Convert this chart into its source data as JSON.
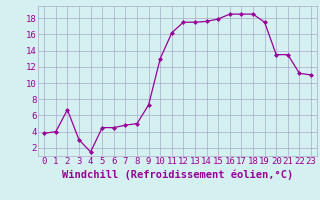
{
  "x": [
    0,
    1,
    2,
    3,
    4,
    5,
    6,
    7,
    8,
    9,
    10,
    11,
    12,
    13,
    14,
    15,
    16,
    17,
    18,
    19,
    20,
    21,
    22,
    23
  ],
  "y": [
    3.8,
    4.0,
    6.7,
    3.0,
    1.5,
    4.5,
    4.5,
    4.8,
    5.0,
    7.3,
    13.0,
    16.2,
    17.5,
    17.5,
    17.6,
    17.9,
    18.5,
    18.5,
    18.5,
    17.5,
    13.5,
    13.5,
    11.2,
    11.0
  ],
  "line_color": "#990099",
  "marker": "D",
  "marker_size": 2,
  "bg_color": "#d4f0f0",
  "grid_color": "#aaaacc",
  "xlabel": "Windchill (Refroidissement éolien,°C)",
  "xlabel_color": "#990099",
  "ylabel_ticks": [
    2,
    4,
    6,
    8,
    10,
    12,
    14,
    16,
    18
  ],
  "xtick_labels": [
    "0",
    "1",
    "2",
    "3",
    "4",
    "5",
    "6",
    "7",
    "8",
    "9",
    "10",
    "11",
    "12",
    "13",
    "14",
    "15",
    "16",
    "17",
    "18",
    "19",
    "20",
    "21",
    "22",
    "23"
  ],
  "ylim": [
    1,
    19.5
  ],
  "xlim": [
    -0.5,
    23.5
  ],
  "tick_color": "#990099",
  "tick_fontsize": 6.5,
  "xlabel_fontsize": 7.5
}
